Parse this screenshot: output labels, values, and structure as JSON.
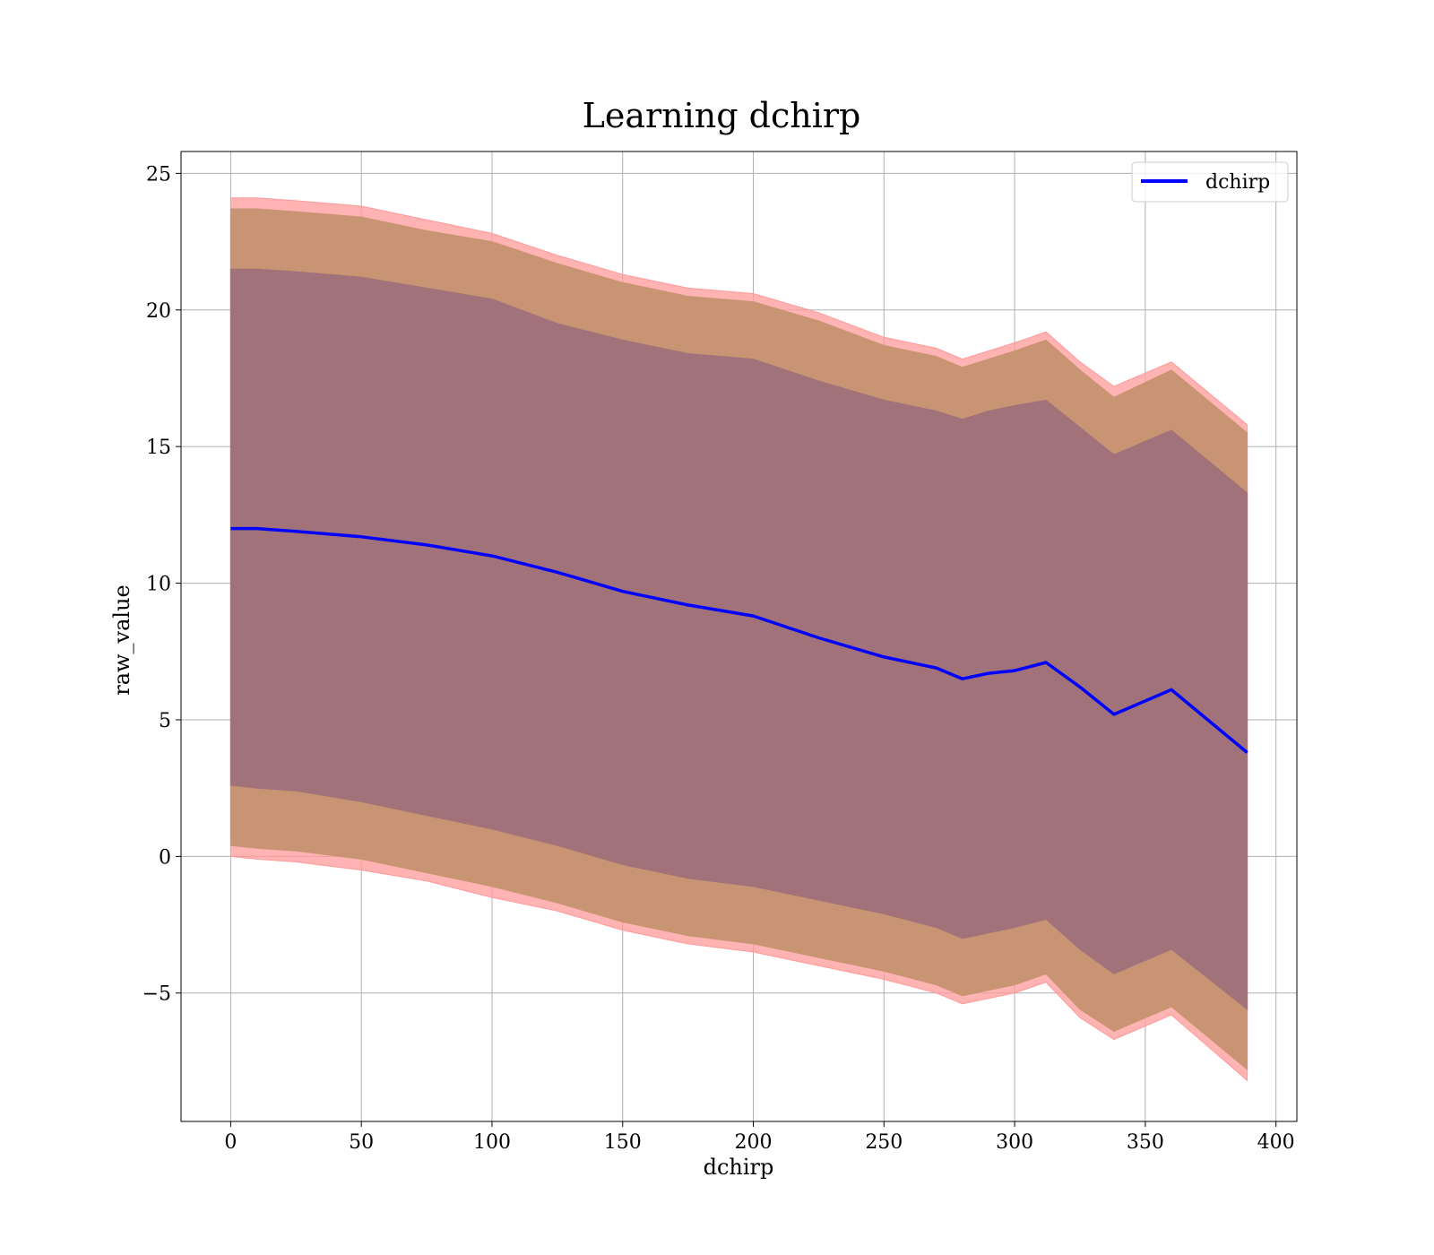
{
  "chart_data": {
    "type": "line",
    "title": "Learning dchirp",
    "xlabel": "dchirp",
    "ylabel": "raw_value",
    "xlim": [
      -19,
      408
    ],
    "ylim": [
      -9.7,
      25.8
    ],
    "xticks": [
      0,
      50,
      100,
      150,
      200,
      250,
      300,
      350,
      400
    ],
    "yticks": [
      -5,
      0,
      5,
      10,
      15,
      20,
      25
    ],
    "ytick_labels": [
      "−5",
      "0",
      "5",
      "10",
      "15",
      "20",
      "25"
    ],
    "grid": true,
    "legend_position": "top-right",
    "colors": {
      "line": "#0000ff",
      "band_outer": "#ff9999",
      "band_middle": "#c99473",
      "band_inner": "#a1727a",
      "grid": "#b0b0b0"
    },
    "x": [
      0,
      10,
      25,
      50,
      75,
      100,
      125,
      150,
      175,
      200,
      225,
      250,
      270,
      280,
      290,
      300,
      312,
      325,
      338,
      360,
      389
    ],
    "series": [
      {
        "name": "dchirp",
        "values": [
          12.0,
          12.0,
          11.9,
          11.7,
          11.4,
          11.0,
          10.4,
          9.7,
          9.2,
          8.8,
          8.0,
          7.3,
          6.9,
          6.5,
          6.7,
          6.8,
          7.1,
          6.2,
          5.2,
          6.1,
          3.8
        ]
      }
    ],
    "bands": [
      {
        "level": "outer",
        "lower": [
          0.0,
          -0.1,
          -0.2,
          -0.5,
          -0.9,
          -1.5,
          -2.0,
          -2.7,
          -3.2,
          -3.5,
          -4.0,
          -4.5,
          -5.0,
          -5.4,
          -5.2,
          -5.0,
          -4.6,
          -5.9,
          -6.7,
          -5.8,
          -8.2
        ],
        "upper": [
          24.1,
          24.1,
          24.0,
          23.8,
          23.3,
          22.8,
          22.0,
          21.3,
          20.8,
          20.6,
          19.9,
          19.0,
          18.6,
          18.2,
          18.5,
          18.8,
          19.2,
          18.1,
          17.2,
          18.1,
          15.8
        ]
      },
      {
        "level": "middle",
        "lower": [
          0.4,
          0.3,
          0.2,
          -0.1,
          -0.6,
          -1.1,
          -1.7,
          -2.4,
          -2.9,
          -3.2,
          -3.7,
          -4.2,
          -4.7,
          -5.1,
          -4.9,
          -4.7,
          -4.3,
          -5.6,
          -6.4,
          -5.5,
          -7.8
        ],
        "upper": [
          23.7,
          23.7,
          23.6,
          23.4,
          22.9,
          22.5,
          21.7,
          21.0,
          20.5,
          20.3,
          19.6,
          18.7,
          18.3,
          17.9,
          18.2,
          18.5,
          18.9,
          17.8,
          16.8,
          17.8,
          15.5
        ]
      },
      {
        "level": "inner",
        "lower": [
          2.6,
          2.5,
          2.4,
          2.0,
          1.5,
          1.0,
          0.4,
          -0.3,
          -0.8,
          -1.1,
          -1.6,
          -2.1,
          -2.6,
          -3.0,
          -2.8,
          -2.6,
          -2.3,
          -3.4,
          -4.3,
          -3.4,
          -5.6
        ],
        "upper": [
          21.5,
          21.5,
          21.4,
          21.2,
          20.8,
          20.4,
          19.5,
          18.9,
          18.4,
          18.2,
          17.4,
          16.7,
          16.3,
          16.0,
          16.3,
          16.5,
          16.7,
          15.7,
          14.7,
          15.6,
          13.3
        ]
      }
    ]
  }
}
